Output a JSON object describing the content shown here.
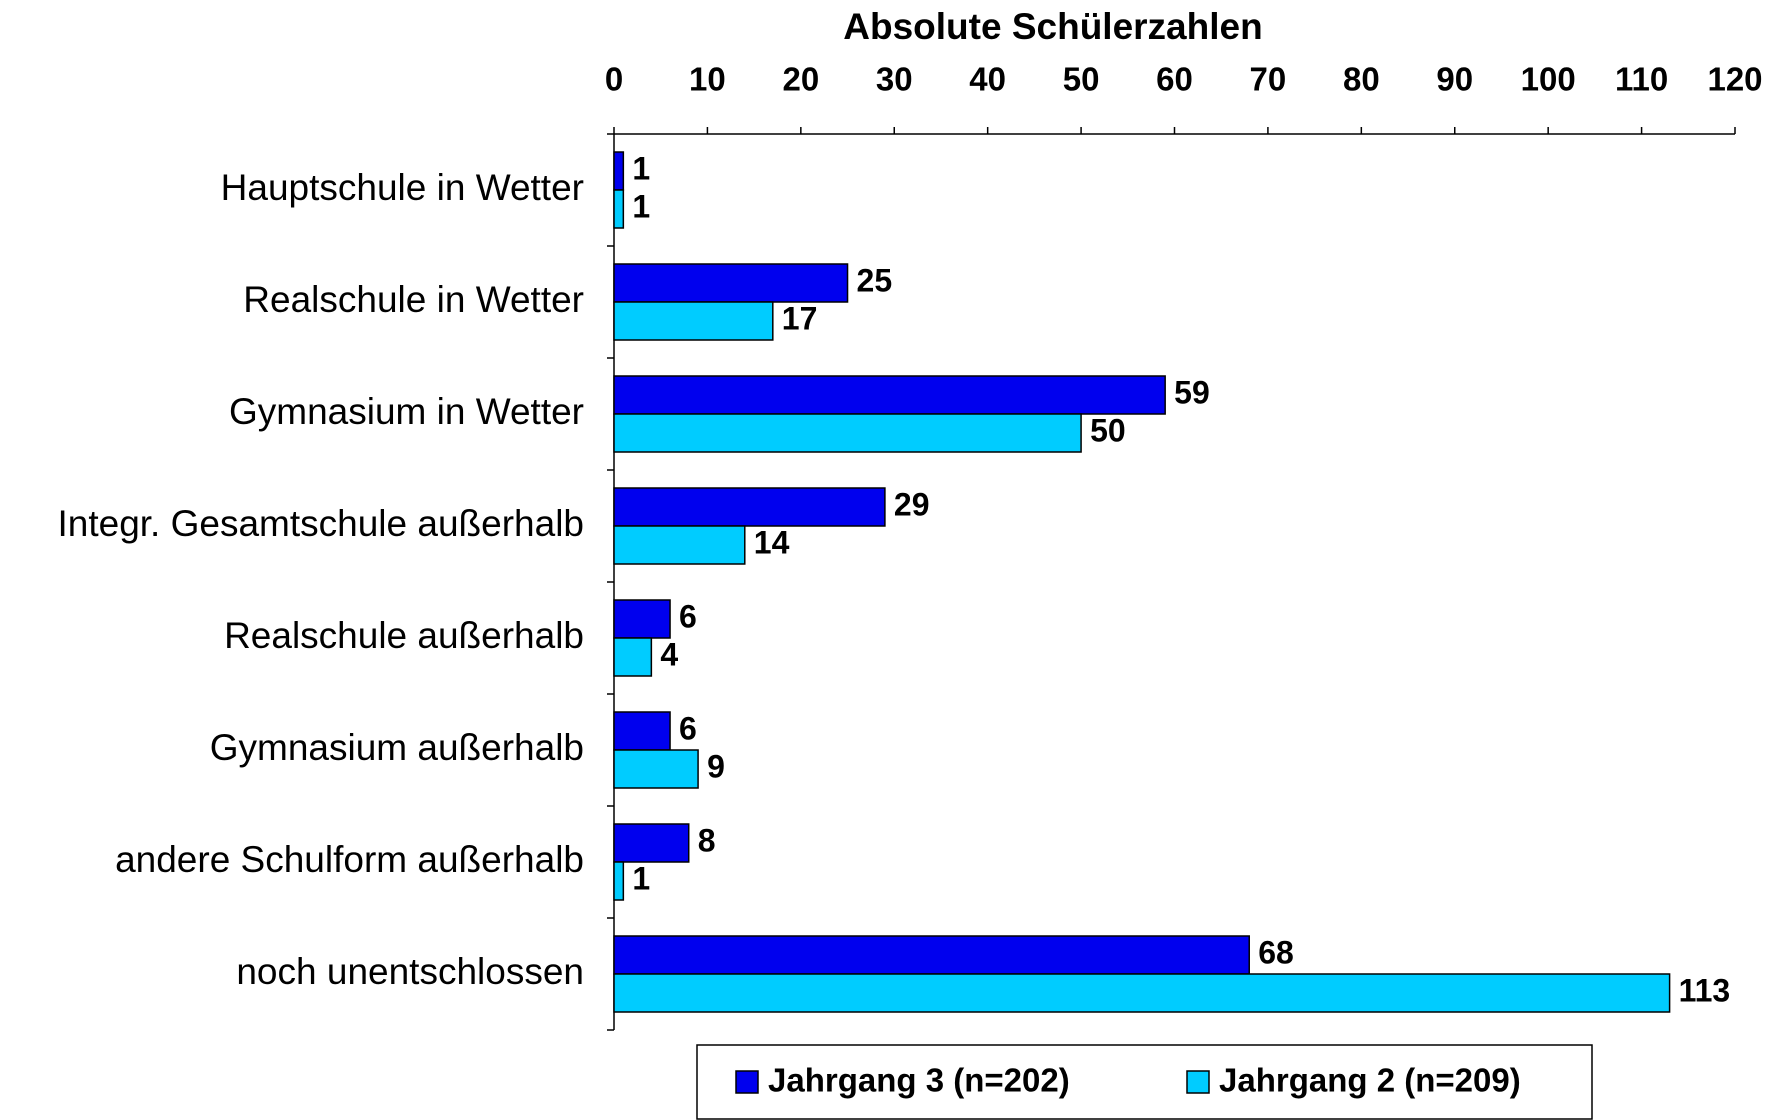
{
  "chart_data": {
    "type": "bar",
    "orientation": "horizontal",
    "title": "Absolute Schülerzahlen",
    "categories": [
      "Hauptschule in Wetter",
      "Realschule in Wetter",
      "Gymnasium in Wetter",
      "Integr. Gesamtschule außerhalb",
      "Realschule außerhalb",
      "Gymnasium außerhalb",
      "andere Schulform außerhalb",
      "noch unentschlossen"
    ],
    "series": [
      {
        "name": "Jahrgang 3 (n=202)",
        "color": "#0000ee",
        "values": [
          1,
          25,
          59,
          29,
          6,
          6,
          8,
          68
        ]
      },
      {
        "name": "Jahrgang 2 (n=209)",
        "color": "#00ccff",
        "values": [
          1,
          17,
          50,
          14,
          4,
          9,
          1,
          113
        ]
      }
    ],
    "xlim": [
      0,
      120
    ],
    "xticks": [
      0,
      10,
      20,
      30,
      40,
      50,
      60,
      70,
      80,
      90,
      100,
      110,
      120
    ],
    "grid": false,
    "legend": "bottom"
  }
}
